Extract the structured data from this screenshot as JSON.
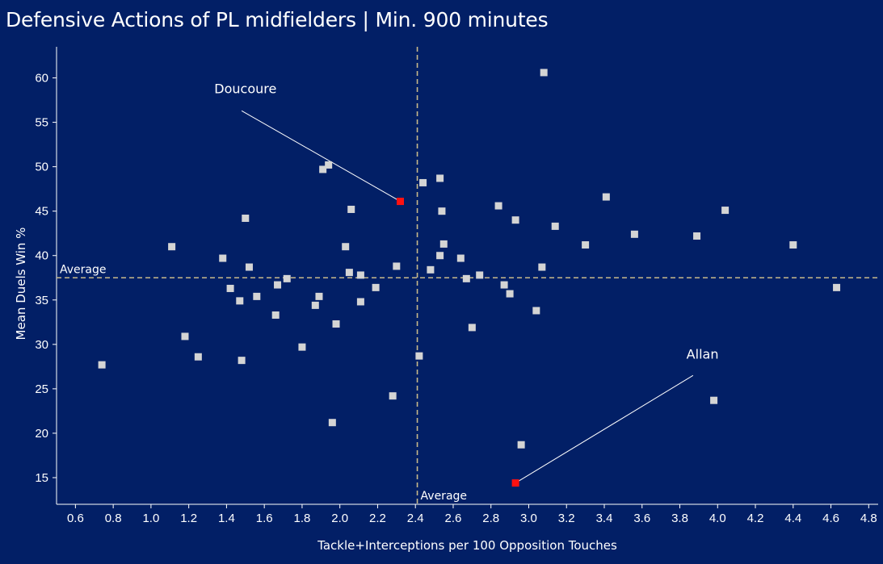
{
  "chart_data": {
    "type": "scatter",
    "title": "Defensive Actions of PL midfielders | Min. 900 minutes",
    "xlabel": "Tackle+Interceptions per 100 Opposition Touches",
    "ylabel": "Mean Duels Win %",
    "xlim": [
      0.5,
      4.85
    ],
    "ylim": [
      12,
      63.5
    ],
    "xticks": [
      "0.6",
      "0.8",
      "1.0",
      "1.2",
      "1.4",
      "1.6",
      "1.8",
      "2.0",
      "2.2",
      "2.4",
      "2.6",
      "2.8",
      "3.0",
      "3.2",
      "3.4",
      "3.6",
      "3.8",
      "4.0",
      "4.2",
      "4.4",
      "4.6",
      "4.8"
    ],
    "yticks": [
      "15",
      "20",
      "25",
      "30",
      "35",
      "40",
      "45",
      "50",
      "55",
      "60"
    ],
    "grid": false,
    "average_lines": {
      "x": 2.41,
      "y": 37.5,
      "x_label": "Average",
      "y_label": "Average",
      "color": "#c8b98a"
    },
    "point_color": "#d4d4d4",
    "highlight_color": "#ff1111",
    "points": [
      [
        0.74,
        27.7
      ],
      [
        1.11,
        41.0
      ],
      [
        1.18,
        30.9
      ],
      [
        1.25,
        28.6
      ],
      [
        1.38,
        39.7
      ],
      [
        1.42,
        36.3
      ],
      [
        1.47,
        34.9
      ],
      [
        1.48,
        28.2
      ],
      [
        1.5,
        44.2
      ],
      [
        1.52,
        38.7
      ],
      [
        1.56,
        35.4
      ],
      [
        1.66,
        33.3
      ],
      [
        1.67,
        36.7
      ],
      [
        1.72,
        37.4
      ],
      [
        1.8,
        29.7
      ],
      [
        1.87,
        34.4
      ],
      [
        1.89,
        35.4
      ],
      [
        1.91,
        49.7
      ],
      [
        1.94,
        50.2
      ],
      [
        1.96,
        21.2
      ],
      [
        1.98,
        32.3
      ],
      [
        2.03,
        41.0
      ],
      [
        2.05,
        38.1
      ],
      [
        2.06,
        45.2
      ],
      [
        2.11,
        37.8
      ],
      [
        2.11,
        34.8
      ],
      [
        2.19,
        36.4
      ],
      [
        2.28,
        24.2
      ],
      [
        2.3,
        38.8
      ],
      [
        2.42,
        28.7
      ],
      [
        2.44,
        48.2
      ],
      [
        2.48,
        38.4
      ],
      [
        2.53,
        48.7
      ],
      [
        2.53,
        40.0
      ],
      [
        2.54,
        45.0
      ],
      [
        2.55,
        41.3
      ],
      [
        2.64,
        39.7
      ],
      [
        2.67,
        37.4
      ],
      [
        2.7,
        31.9
      ],
      [
        2.74,
        37.8
      ],
      [
        2.84,
        45.6
      ],
      [
        2.87,
        36.7
      ],
      [
        2.9,
        35.7
      ],
      [
        2.93,
        44.0
      ],
      [
        2.96,
        18.7
      ],
      [
        3.04,
        33.8
      ],
      [
        3.07,
        38.7
      ],
      [
        3.08,
        60.6
      ],
      [
        3.14,
        43.3
      ],
      [
        3.3,
        41.2
      ],
      [
        3.41,
        46.6
      ],
      [
        3.56,
        42.4
      ],
      [
        3.89,
        42.2
      ],
      [
        3.98,
        23.7
      ],
      [
        4.04,
        45.1
      ],
      [
        4.4,
        41.2
      ],
      [
        4.63,
        36.4
      ]
    ],
    "highlighted": [
      {
        "name": "Doucoure",
        "x": 2.32,
        "y": 46.1,
        "label_x": 1.5,
        "label_y": 58.3,
        "line_end_x": 1.48,
        "line_end_y": 56.3
      },
      {
        "name": "Allan",
        "x": 2.93,
        "y": 14.4,
        "label_x": 3.92,
        "label_y": 28.4,
        "line_end_x": 3.87,
        "line_end_y": 26.5
      }
    ]
  }
}
